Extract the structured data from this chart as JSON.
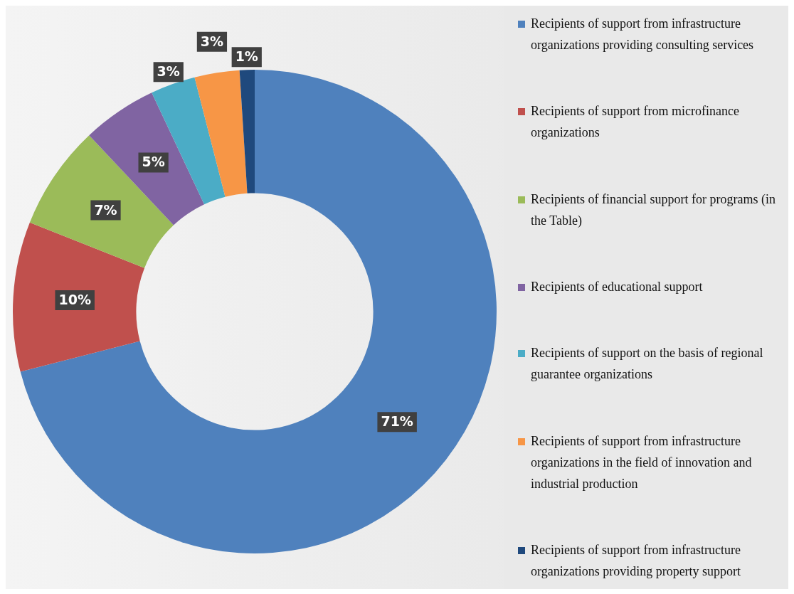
{
  "chart_data": {
    "type": "donut",
    "categories": [
      "Recipients of support from infrastructure organizations providing consulting services",
      "Recipients of support from microfinance organizations",
      "Recipients of financial support for programs (in the Table)",
      "Recipients of educational support",
      "Recipients of support on the basis of regional guarantee organizations",
      "Recipients of support from infrastructure organizations in the field of innovation and industrial production",
      "Recipients of support from infrastructure organizations providing property support"
    ],
    "values": [
      71,
      10,
      7,
      5,
      3,
      3,
      1
    ],
    "colors": [
      "#4f81bd",
      "#c0504d",
      "#9bbb59",
      "#8064a2",
      "#4bacc6",
      "#f79646",
      "#1f497d"
    ],
    "value_labels": [
      "71%",
      "10%",
      "7%",
      "5%",
      "3%",
      "3%",
      "1%"
    ],
    "legend": "right"
  }
}
